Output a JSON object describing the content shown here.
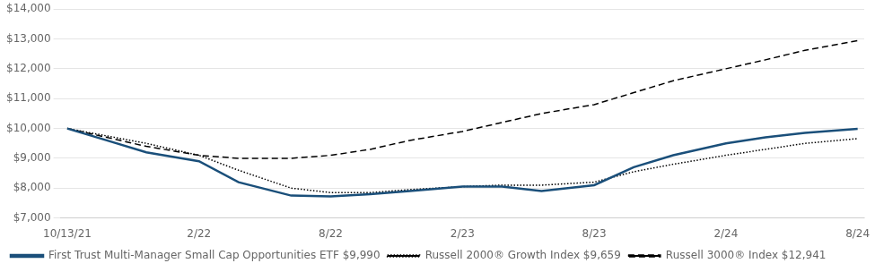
{
  "chart_data": {
    "type": "line",
    "x": [
      0,
      0.3,
      0.6,
      1.0,
      1.3,
      1.7,
      2.0,
      2.3,
      2.6,
      3.0,
      3.3,
      3.6,
      4.0,
      4.3,
      4.6,
      5.0,
      5.3,
      5.6,
      6.0
    ],
    "series": [
      {
        "name": "First Trust Multi-Manager Small Cap Opportunities ETF $9,990",
        "color": "#1a4f7a",
        "line_style": "solid",
        "values": [
          10000,
          9600,
          9200,
          8900,
          8200,
          7750,
          7720,
          7800,
          7900,
          8050,
          8050,
          7900,
          8100,
          8700,
          9100,
          9500,
          9700,
          9850,
          9990
        ]
      },
      {
        "name": "Russell 2000® Growth Index $9,659",
        "color": "#000000",
        "line_style": "dotted",
        "values": [
          10000,
          9750,
          9500,
          9100,
          8600,
          8000,
          7850,
          7850,
          7950,
          8050,
          8100,
          8100,
          8200,
          8550,
          8800,
          9100,
          9300,
          9500,
          9659
        ]
      },
      {
        "name": "Russell 3000® Index $12,941",
        "color": "#000000",
        "line_style": "dashed",
        "values": [
          10000,
          9700,
          9400,
          9100,
          9000,
          9000,
          9100,
          9300,
          9600,
          9900,
          10200,
          10500,
          10800,
          11200,
          11600,
          12000,
          12300,
          12620,
          12941
        ]
      }
    ],
    "xlim": [
      -0.05,
      6.05
    ],
    "xticks": [
      {
        "value": 0,
        "label": "10/13/21"
      },
      {
        "value": 1,
        "label": "2/22"
      },
      {
        "value": 2,
        "label": "8/22"
      },
      {
        "value": 3,
        "label": "2/23"
      },
      {
        "value": 4,
        "label": "8/23"
      },
      {
        "value": 5,
        "label": "2/24"
      },
      {
        "value": 6,
        "label": "8/24"
      }
    ],
    "ylim": [
      7000,
      14000
    ],
    "yticks": [
      {
        "value": 7000,
        "label": "$7,000"
      },
      {
        "value": 8000,
        "label": "$8,000"
      },
      {
        "value": 9000,
        "label": "$9,000"
      },
      {
        "value": 10000,
        "label": "$10,000"
      },
      {
        "value": 11000,
        "label": "$11,000"
      },
      {
        "value": 12000,
        "label": "$12,000"
      },
      {
        "value": 13000,
        "label": "$13,000"
      },
      {
        "value": 14000,
        "label": "$14,000"
      }
    ],
    "grid": "y",
    "legend": "bottom"
  }
}
